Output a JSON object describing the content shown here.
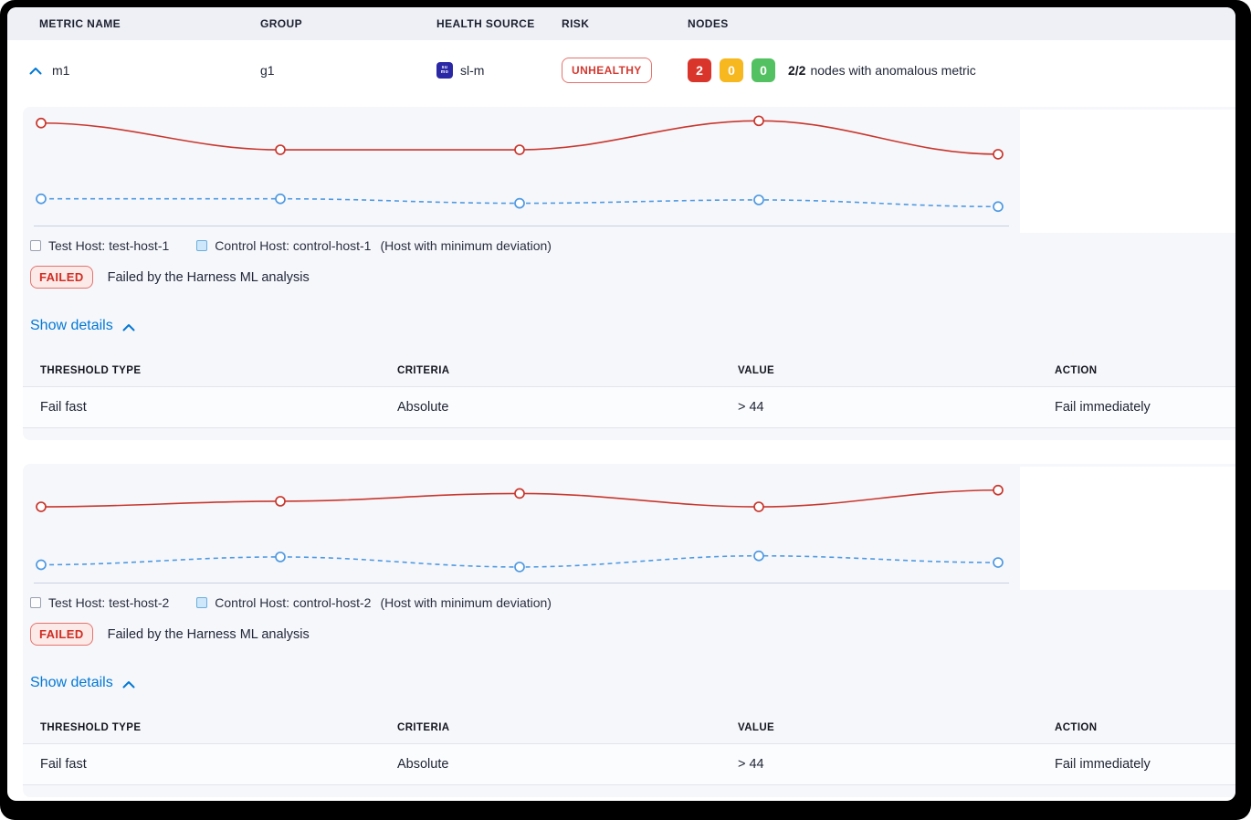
{
  "table": {
    "columns": [
      "METRIC NAME",
      "GROUP",
      "HEALTH SOURCE",
      "RISK",
      "NODES"
    ],
    "row": {
      "metric_name": "m1",
      "group": "g1",
      "health_source": "sl-m",
      "health_source_icon": "sumologic-icon",
      "health_source_icon_text_top": "su",
      "health_source_icon_text_bottom": "mo",
      "risk": "UNHEALTHY",
      "nodes": {
        "unhealthy_count": "2",
        "warning_count": "0",
        "healthy_count": "0",
        "summary_bold": "2/2",
        "summary_text": "nodes with anomalous metric"
      }
    }
  },
  "sections": [
    {
      "legend": {
        "test_label": "Test Host: test-host-1",
        "control_label": "Control Host: control-host-1",
        "control_note": "(Host with minimum deviation)"
      },
      "status": {
        "badge": "FAILED",
        "message": "Failed by the Harness ML analysis"
      },
      "details_toggle": "Show details",
      "threshold_table": {
        "columns": [
          "THRESHOLD TYPE",
          "CRITERIA",
          "VALUE",
          "ACTION"
        ],
        "rows": [
          {
            "threshold_type": "Fail fast",
            "criteria": "Absolute",
            "value": "> 44",
            "action": "Fail immediately"
          }
        ]
      }
    },
    {
      "legend": {
        "test_label": "Test Host: test-host-2",
        "control_label": "Control Host: control-host-2",
        "control_note": "(Host with minimum deviation)"
      },
      "status": {
        "badge": "FAILED",
        "message": "Failed by the Harness ML analysis"
      },
      "details_toggle": "Show details",
      "threshold_table": {
        "columns": [
          "THRESHOLD TYPE",
          "CRITERIA",
          "VALUE",
          "ACTION"
        ],
        "rows": [
          {
            "threshold_type": "Fail fast",
            "criteria": "Absolute",
            "value": "> 44",
            "action": "Fail immediately"
          }
        ]
      }
    }
  ],
  "chart_data": [
    {
      "type": "line",
      "x": [
        1,
        2,
        3,
        4,
        5
      ],
      "series": [
        {
          "name": "Test Host: test-host-1",
          "color": "#c9372e",
          "style": "solid",
          "marker": "open-circle",
          "values": [
            92,
            68,
            68,
            94,
            64
          ]
        },
        {
          "name": "Control Host: control-host-1",
          "color": "#4f9ae2",
          "style": "dashed",
          "marker": "open-circle",
          "values": [
            24,
            24,
            20,
            23,
            17
          ]
        }
      ],
      "title": "",
      "xlabel": "",
      "ylabel": "",
      "ylim": [
        0,
        100
      ],
      "axes_hidden": true,
      "note": "values estimated 0-100 from pixel positions; axes unlabeled in source UI",
      "grid": false,
      "legend_position": "below-chart"
    },
    {
      "type": "line",
      "x": [
        1,
        2,
        3,
        4,
        5
      ],
      "series": [
        {
          "name": "Test Host: test-host-2",
          "color": "#c9372e",
          "style": "solid",
          "marker": "open-circle",
          "values": [
            68,
            73,
            80,
            68,
            83
          ]
        },
        {
          "name": "Control Host: control-host-2",
          "color": "#4f9ae2",
          "style": "dashed",
          "marker": "open-circle",
          "values": [
            16,
            23,
            14,
            24,
            18
          ]
        }
      ],
      "title": "",
      "xlabel": "",
      "ylabel": "",
      "ylim": [
        0,
        100
      ],
      "axes_hidden": true,
      "note": "values estimated 0-100 from pixel positions; axes unlabeled in source UI",
      "grid": false,
      "legend_position": "below-chart"
    }
  ],
  "colors": {
    "accent_blue": "#0278d5",
    "risk_red": "#e43326",
    "chip_red": "#d9352b",
    "chip_yellow": "#f6b71f",
    "chip_green": "#53c162",
    "test_line": "#c9372e",
    "control_line": "#4f9ae2",
    "panel_bg": "#f6f7fb",
    "header_bg": "#eef0f6",
    "sumologic_navy": "#2b28a5"
  }
}
